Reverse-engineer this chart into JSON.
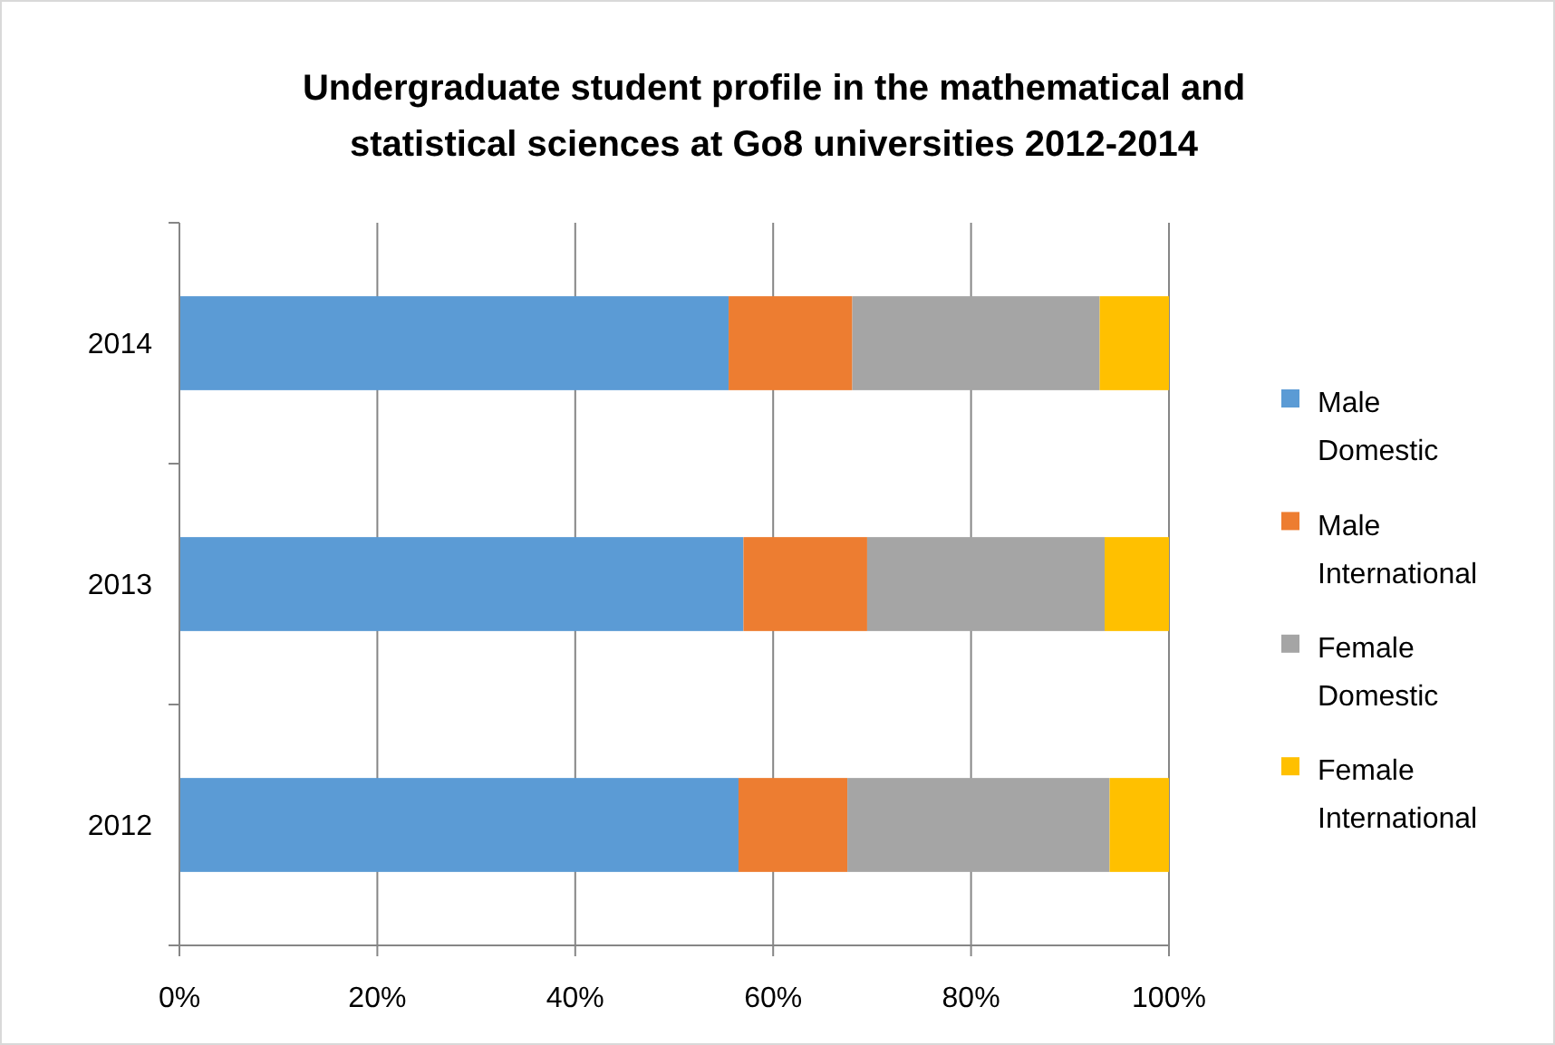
{
  "chart_data": {
    "type": "bar",
    "orientation": "horizontal",
    "stacked": true,
    "title": "Undergraduate student profile in the mathematical and statistical sciences at Go8 universities 2012-2014",
    "categories": [
      "2014",
      "2013",
      "2012"
    ],
    "series": [
      {
        "name": "Male Domestic",
        "color": "#5b9bd5",
        "values": [
          55.5,
          57,
          56.5
        ]
      },
      {
        "name": "Male International",
        "color": "#ed7d31",
        "values": [
          12.5,
          12.5,
          11
        ]
      },
      {
        "name": "Female Domestic",
        "color": "#a5a5a5",
        "values": [
          25,
          24,
          26.5
        ]
      },
      {
        "name": "Female International",
        "color": "#ffc000",
        "values": [
          7,
          6.5,
          6
        ]
      }
    ],
    "xlim": [
      0,
      100
    ],
    "xticks": [
      {
        "value": 0,
        "label": "0%"
      },
      {
        "value": 20,
        "label": "20%"
      },
      {
        "value": 40,
        "label": "40%"
      },
      {
        "value": 60,
        "label": "60%"
      },
      {
        "value": 80,
        "label": "80%"
      },
      {
        "value": 100,
        "label": "100%"
      }
    ],
    "grid": "x",
    "legend": "right"
  }
}
